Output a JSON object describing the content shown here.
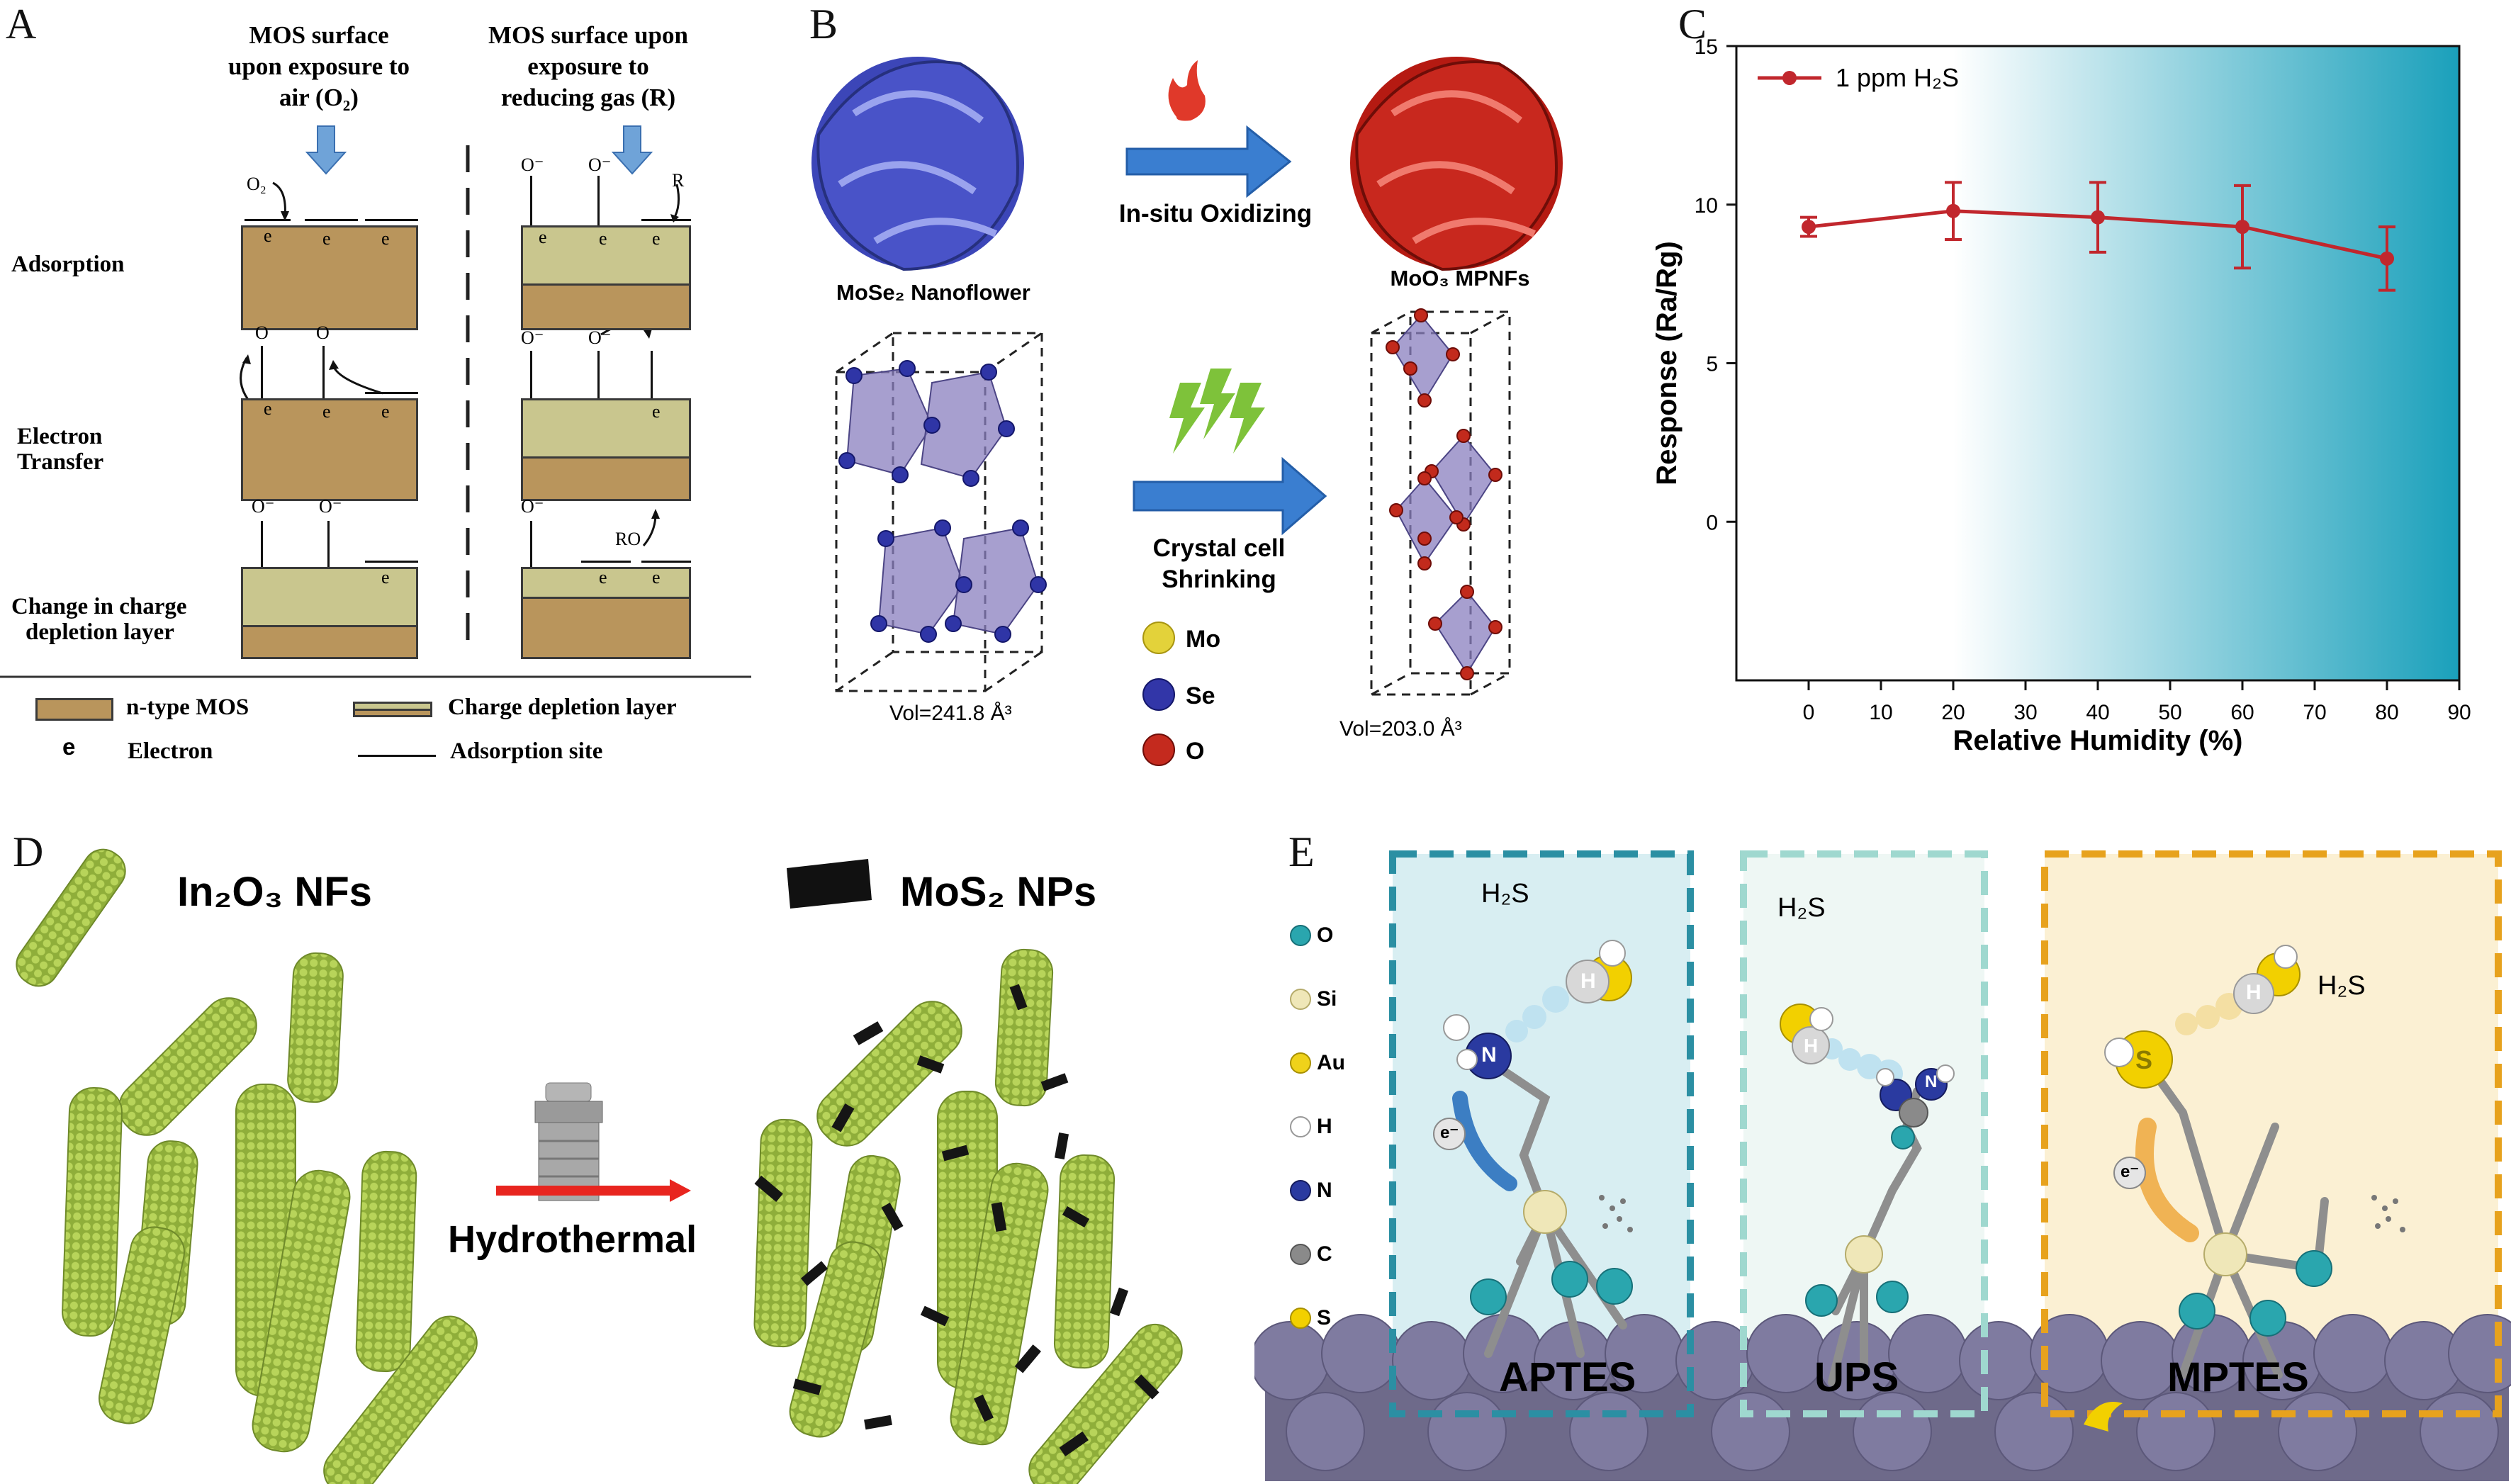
{
  "panels": {
    "a": {
      "label": "A",
      "col1_header": [
        "MOS surface",
        "upon exposure to",
        "air (O₂)"
      ],
      "col2_header": [
        "MOS surface upon",
        "exposure to",
        "reducing gas (R)"
      ],
      "rows": [
        "Adsorption",
        "Electron\nTransfer",
        "Change in charge\ndepletion layer"
      ],
      "legend": {
        "ntype": "n-type MOS",
        "depletion": "Charge depletion layer",
        "e_symbol": "e",
        "electron": "Electron",
        "site": "Adsorption site"
      },
      "symbols": {
        "o2": "O₂",
        "o_minus": "O⁻",
        "o": "O",
        "r": "R",
        "ro": "RO",
        "e": "e"
      }
    },
    "b": {
      "label": "B",
      "left_name": "MoSe₂ Nanoflower",
      "right_name": "MoO₃ MPNFs",
      "process_top": "In-situ Oxidizing",
      "process_bottom": [
        "Crystal cell",
        "Shrinking"
      ],
      "vol_left": "Vol=241.8 Å³",
      "vol_right": "Vol=203.0 Å³",
      "atom_legend": [
        {
          "name": "Mo",
          "color": "#e3d23a"
        },
        {
          "name": "Se",
          "color": "#3236a8"
        },
        {
          "name": "O",
          "color": "#c42a1e"
        }
      ]
    },
    "c": {
      "label": "C"
    },
    "d": {
      "label": "D",
      "in2o3": "In₂O₃ NFs",
      "mos2": "MoS₂ NPs",
      "process": "Hydrothermal"
    },
    "e": {
      "label": "E",
      "legend": [
        {
          "name": "O",
          "color": "#2aa6ae"
        },
        {
          "name": "Si",
          "color": "#efe7b8"
        },
        {
          "name": "Au",
          "color": "#efd21a"
        },
        {
          "name": "H",
          "color": "#ffffff"
        },
        {
          "name": "N",
          "color": "#2a3aa0"
        },
        {
          "name": "C",
          "color": "#8a8a8a"
        },
        {
          "name": "S",
          "color": "#f2d000"
        }
      ],
      "boxes": [
        {
          "name": "APTES",
          "gas": "H₂S",
          "color": "#2b8fa3"
        },
        {
          "name": "UPS",
          "gas": "H₂S",
          "color": "#9fd8cf"
        },
        {
          "name": "MPTES",
          "gas": "H₂S",
          "color": "#e7a21d"
        }
      ],
      "h_label": "H",
      "n_label": "N",
      "s_label": "S",
      "electron_label": "e⁻"
    }
  },
  "chart_data": {
    "type": "line",
    "series": [
      {
        "name": "1 ppm H₂S",
        "color": "#c1272d",
        "x": [
          0,
          20,
          40,
          60,
          80
        ],
        "y": [
          9.3,
          9.8,
          9.6,
          9.3,
          8.3
        ],
        "err": [
          0.3,
          0.9,
          1.1,
          1.3,
          1.0
        ]
      }
    ],
    "xlabel": "Relative Humidity (%)",
    "ylabel": "Response (Ra/Rg)",
    "xlim": [
      -10,
      90
    ],
    "ylim": [
      -5,
      15
    ],
    "xticks": [
      0,
      10,
      20,
      30,
      40,
      50,
      60,
      70,
      80,
      90
    ],
    "yticks": [
      0,
      5,
      10,
      15
    ],
    "grid": false,
    "legend_position": "top-left",
    "background_gradient": [
      "#ffffff",
      "#19a2bc"
    ]
  }
}
